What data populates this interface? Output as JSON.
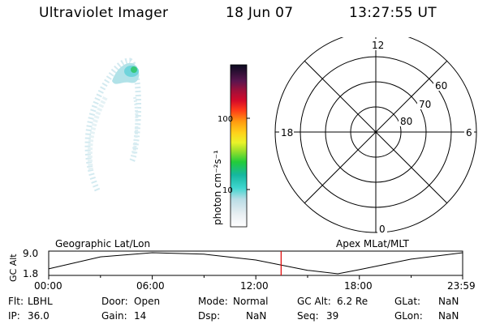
{
  "header": {
    "title": "Ultraviolet Imager",
    "date": "18 Jun 07",
    "time": "13:27:55 UT"
  },
  "colorbar": {
    "label": "photon cm⁻²s⁻¹",
    "ticks": [
      "100",
      "10"
    ],
    "scale": "log"
  },
  "polar": {
    "mlt_labels": [
      "12",
      "18",
      "6",
      "0"
    ],
    "lat_labels": [
      "60",
      "70",
      "80"
    ]
  },
  "timeline": {
    "left_title": "Geographic Lat/Lon",
    "right_title": "Apex MLat/MLT",
    "ylabel": "GC Alt",
    "y_ticks": [
      "9.0",
      "1.8"
    ],
    "x_ticks": [
      "00:00",
      "06:00",
      "12:00",
      "18:00",
      "23:59"
    ],
    "marker_color": "#e00000"
  },
  "chart_data": {
    "type": "line",
    "x": [
      "00:00",
      "03:00",
      "06:00",
      "09:00",
      "12:00",
      "15:00",
      "16:45",
      "18:00",
      "21:00",
      "23:59"
    ],
    "series": [
      {
        "values": [
          3.5,
          7.6,
          9.0,
          8.5,
          6.5,
          3.0,
          1.8,
          3.2,
          6.8,
          9.0
        ]
      }
    ],
    "ylim": [
      1.8,
      9.0
    ],
    "current_time": "13:27:55"
  },
  "status": {
    "flt_label": "Flt:",
    "flt_value": "LBHL",
    "ip_label": "IP:",
    "ip_value": "36.0",
    "door_label": "Door:",
    "door_value": "Open",
    "gain_label": "Gain:",
    "gain_value": "14",
    "mode_label": "Mode:",
    "mode_value": "Normal",
    "dsp_label": "Dsp:",
    "dsp_value": "NaN",
    "gcalt_label": "GC Alt:",
    "gcalt_value": "6.2 Re",
    "seq_label": "Seq:",
    "seq_value": "39",
    "glat_label": "GLat:",
    "glat_value": "NaN",
    "glon_label": "GLon:",
    "glon_value": "NaN"
  }
}
